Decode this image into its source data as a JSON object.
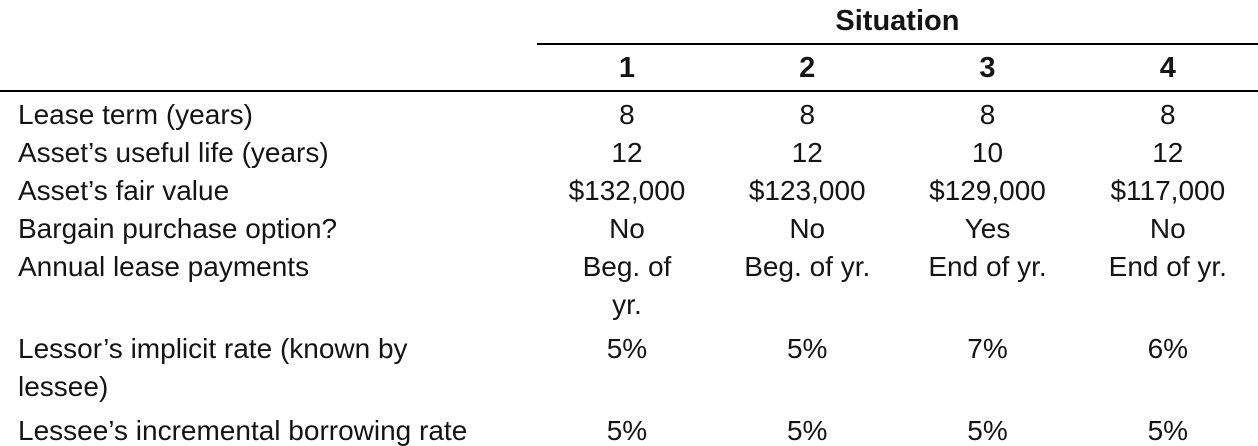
{
  "table": {
    "group_header": "Situation",
    "column_headers": [
      "1",
      "2",
      "3",
      "4"
    ],
    "rows": [
      {
        "label": "Lease term (years)",
        "values": [
          "8",
          "8",
          "8",
          "8"
        ]
      },
      {
        "label": "Asset’s useful life (years)",
        "values": [
          "12",
          "12",
          "10",
          "12"
        ]
      },
      {
        "label": "Asset’s fair value",
        "values": [
          "$132,000",
          "$123,000",
          "$129,000",
          "$117,000"
        ]
      },
      {
        "label": "Bargain purchase option?",
        "values": [
          "No",
          "No",
          "Yes",
          "No"
        ]
      },
      {
        "label": "Annual lease payments",
        "values": [
          "Beg. of\nyr.",
          "Beg. of yr.",
          "End of yr.",
          "End of yr."
        ]
      },
      {
        "label": "Lessor’s implicit rate (known by\nlessee)",
        "values": [
          "5%",
          "5%",
          "7%",
          "6%"
        ]
      },
      {
        "label": "Lessee’s incremental borrowing rate",
        "values": [
          "5%",
          "5%",
          "5%",
          "5%"
        ]
      }
    ]
  }
}
